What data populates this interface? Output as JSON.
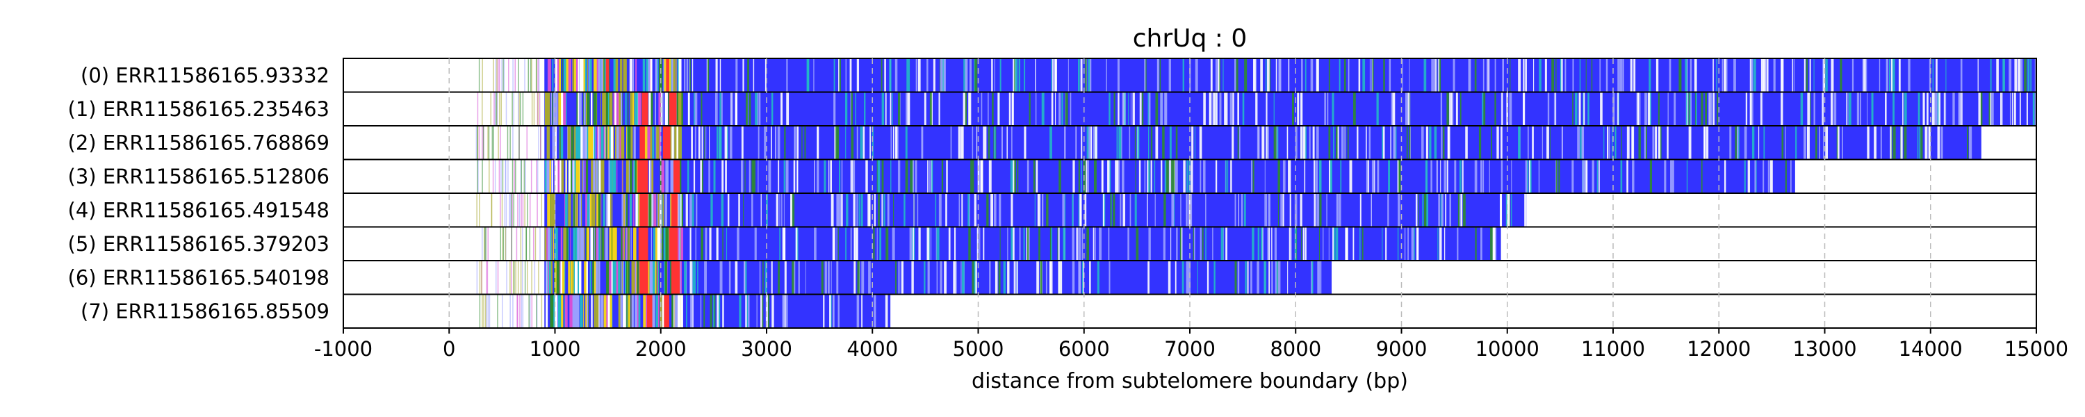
{
  "colors": {
    "telomere_repeat": "#3333ff",
    "light_variant": "#9aa0ff",
    "white_gap": "#ffffff",
    "green_variant": "#2e8b2e",
    "cyan_variant": "#22b8c8",
    "olive_variant": "#a8a830",
    "yellow_variant": "#f2d21a",
    "magenta_variant": "#d64fd6",
    "red_variant": "#ff3333",
    "gridline": "#bbbbbb",
    "row_border": "#000000"
  },
  "chart_data": {
    "type": "bar",
    "title": "chrUq : 0",
    "xlabel": "distance from subtelomere boundary (bp)",
    "ylabel": "",
    "xlim": [
      -1000,
      15000
    ],
    "xticks": [
      "-1000",
      "0",
      "1000",
      "2000",
      "3000",
      "4000",
      "5000",
      "6000",
      "7000",
      "8000",
      "9000",
      "10000",
      "11000",
      "12000",
      "13000",
      "14000",
      "15000"
    ],
    "xtick_values": [
      -1000,
      0,
      1000,
      2000,
      3000,
      4000,
      5000,
      6000,
      7000,
      8000,
      9000,
      10000,
      11000,
      12000,
      13000,
      14000,
      15000
    ],
    "grid": "vertical dashed",
    "reads": [
      {
        "label": "(0) ERR11586165.93332",
        "repeat_start": 900,
        "end": 15000,
        "red_bands": [
          [
            1480,
            1510
          ],
          [
            2050,
            2080
          ]
        ]
      },
      {
        "label": "(1) ERR11586165.235463",
        "repeat_start": 900,
        "end": 15000,
        "red_bands": [
          [
            1820,
            1880
          ],
          [
            2080,
            2150
          ]
        ]
      },
      {
        "label": "(2) ERR11586165.768869",
        "repeat_start": 900,
        "end": 14480,
        "red_bands": [
          [
            1800,
            1850
          ],
          [
            2020,
            2090
          ]
        ]
      },
      {
        "label": "(3) ERR11586165.512806",
        "repeat_start": 900,
        "end": 12720,
        "red_bands": [
          [
            1780,
            1880
          ],
          [
            2120,
            2180
          ]
        ]
      },
      {
        "label": "(4) ERR11586165.491548",
        "repeat_start": 900,
        "end": 10180,
        "red_bands": [
          [
            1800,
            1880
          ],
          [
            2100,
            2160
          ]
        ]
      },
      {
        "label": "(5) ERR11586165.379203",
        "repeat_start": 900,
        "end": 9940,
        "red_bands": [
          [
            1790,
            1880
          ],
          [
            2080,
            2160
          ]
        ]
      },
      {
        "label": "(6) ERR11586165.540198",
        "repeat_start": 900,
        "end": 8340,
        "red_bands": [
          [
            1800,
            1880
          ],
          [
            2100,
            2180
          ]
        ]
      },
      {
        "label": "(7) ERR11586165.85509",
        "repeat_start": 900,
        "end": 4170,
        "red_bands": [
          [
            1870,
            1920
          ],
          [
            2030,
            2080
          ]
        ]
      }
    ]
  }
}
